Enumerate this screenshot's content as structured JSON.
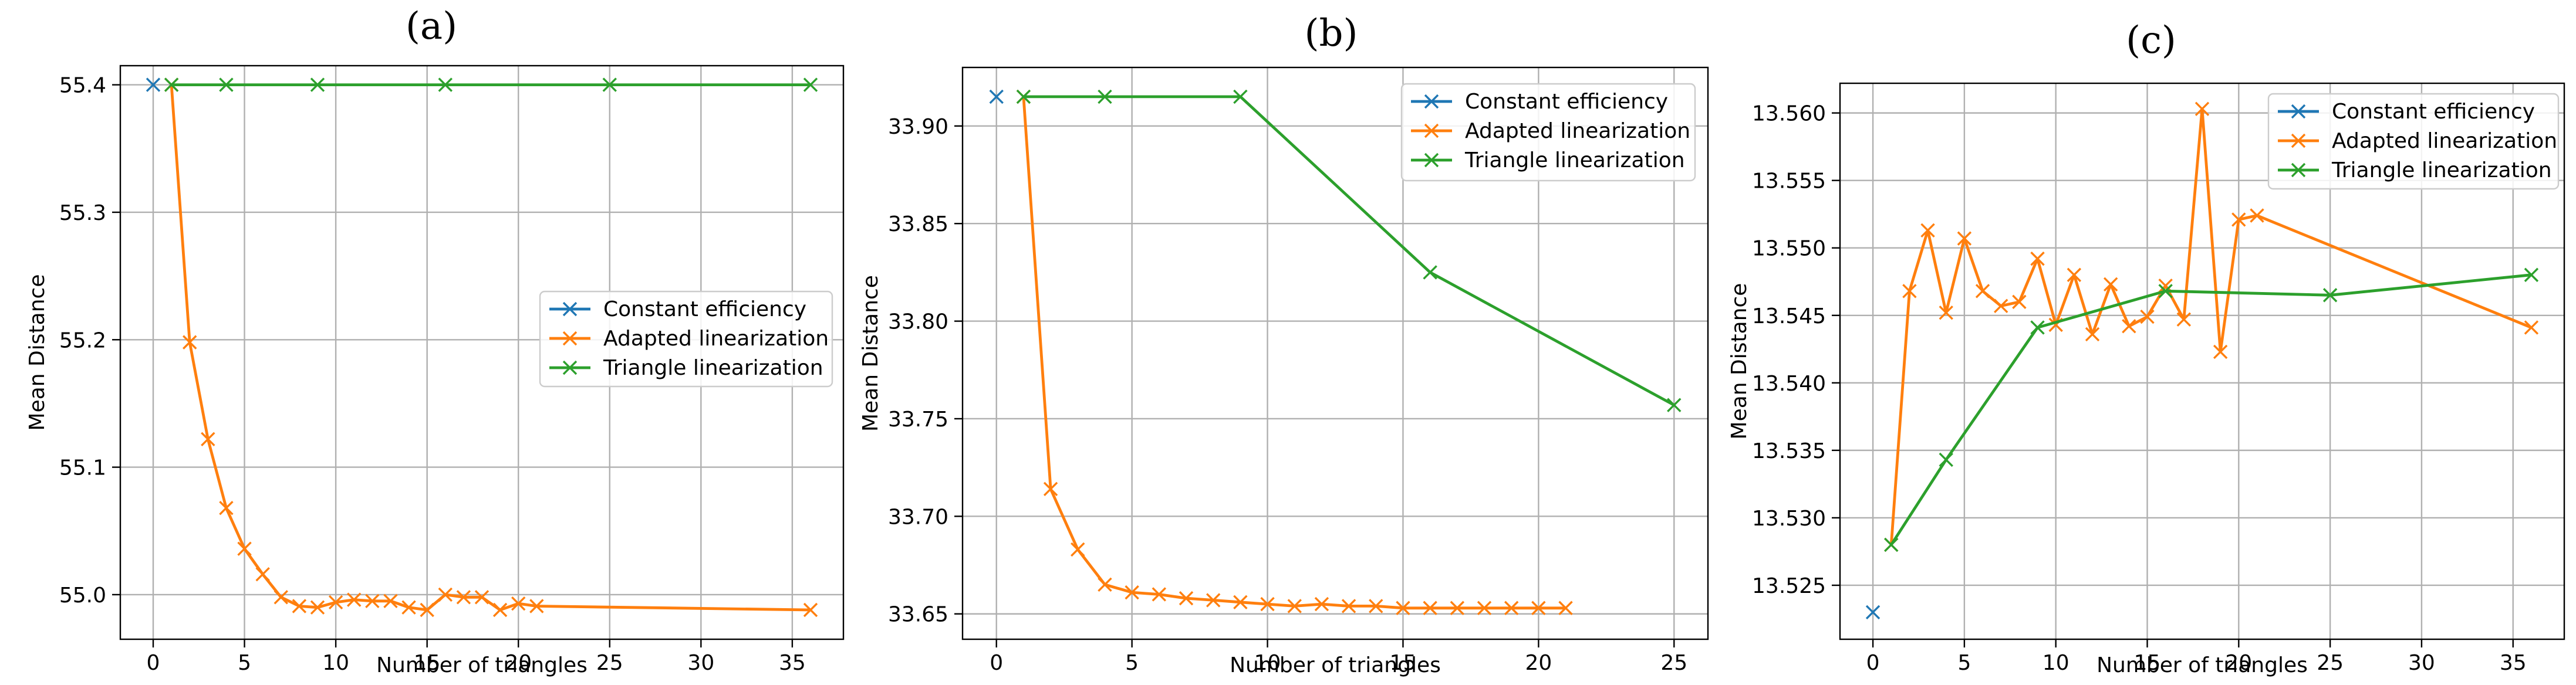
{
  "colors": {
    "constant": "#1f77b4",
    "adapted": "#ff7f0e",
    "triangle": "#2ca02c"
  },
  "chart_data": [
    {
      "type": "line",
      "title": "(a)",
      "xlabel": "Number of triangles",
      "ylabel": "Mean Distance",
      "xlim": [
        -1.8,
        37.8
      ],
      "ylim": [
        54.965,
        55.415
      ],
      "xticks": [
        0,
        5,
        10,
        15,
        20,
        25,
        30,
        35
      ],
      "yticks": [
        55.0,
        55.1,
        55.2,
        55.3,
        55.4
      ],
      "ytick_labels": [
        "55.0",
        "55.1",
        "55.2",
        "55.3",
        "55.4"
      ],
      "legend_position": "center-right",
      "series": [
        {
          "name": "Constant efficiency",
          "color_key": "constant",
          "x": [
            0
          ],
          "y": [
            55.4
          ]
        },
        {
          "name": "Adapted linearization",
          "color_key": "adapted",
          "x": [
            1,
            2,
            3,
            4,
            5,
            6,
            7,
            8,
            9,
            10,
            11,
            12,
            13,
            14,
            15,
            16,
            17,
            18,
            19,
            20,
            21,
            36
          ],
          "y": [
            55.4,
            55.198,
            55.122,
            55.068,
            55.036,
            55.016,
            54.998,
            54.991,
            54.99,
            54.994,
            54.996,
            54.995,
            54.995,
            54.99,
            54.988,
            55.0,
            54.998,
            54.998,
            54.988,
            54.993,
            54.991,
            54.988
          ]
        },
        {
          "name": "Triangle linearization",
          "color_key": "triangle",
          "x": [
            1,
            4,
            9,
            16,
            25,
            36
          ],
          "y": [
            55.4,
            55.4,
            55.4,
            55.4,
            55.4,
            55.4
          ]
        }
      ]
    },
    {
      "type": "line",
      "title": "(b)",
      "xlabel": "Number of triangles",
      "ylabel": "Mean Distance",
      "xlim": [
        -1.25,
        26.25
      ],
      "ylim": [
        33.637,
        33.93
      ],
      "xticks": [
        0,
        5,
        10,
        15,
        20,
        25
      ],
      "yticks": [
        33.65,
        33.7,
        33.75,
        33.8,
        33.85,
        33.9
      ],
      "ytick_labels": [
        "33.65",
        "33.70",
        "33.75",
        "33.80",
        "33.85",
        "33.90"
      ],
      "legend_position": "top-right",
      "series": [
        {
          "name": "Constant efficiency",
          "color_key": "constant",
          "x": [
            0
          ],
          "y": [
            33.915
          ]
        },
        {
          "name": "Adapted linearization",
          "color_key": "adapted",
          "x": [
            1,
            2,
            3,
            4,
            5,
            6,
            7,
            8,
            9,
            10,
            11,
            12,
            13,
            14,
            15,
            16,
            17,
            18,
            19,
            20,
            21
          ],
          "y": [
            33.915,
            33.714,
            33.683,
            33.665,
            33.661,
            33.66,
            33.658,
            33.657,
            33.656,
            33.655,
            33.654,
            33.655,
            33.654,
            33.654,
            33.653,
            33.653,
            33.653,
            33.653,
            33.653,
            33.653,
            33.653
          ]
        },
        {
          "name": "Triangle linearization",
          "color_key": "triangle",
          "x": [
            1,
            4,
            9,
            16,
            25
          ],
          "y": [
            33.915,
            33.915,
            33.915,
            33.825,
            33.757
          ]
        }
      ]
    },
    {
      "type": "line",
      "title": "(c)",
      "xlabel": "Number of triangles",
      "ylabel": "Mean Distance",
      "xlim": [
        -1.8,
        37.8
      ],
      "ylim": [
        13.521,
        13.5622
      ],
      "xticks": [
        0,
        5,
        10,
        15,
        20,
        25,
        30,
        35
      ],
      "yticks": [
        13.525,
        13.53,
        13.535,
        13.54,
        13.545,
        13.55,
        13.555,
        13.56
      ],
      "ytick_labels": [
        "13.525",
        "13.530",
        "13.535",
        "13.540",
        "13.545",
        "13.550",
        "13.555",
        "13.560"
      ],
      "legend_position": "top-right",
      "series": [
        {
          "name": "Constant efficiency",
          "color_key": "constant",
          "x": [
            0
          ],
          "y": [
            13.523
          ]
        },
        {
          "name": "Adapted linearization",
          "color_key": "adapted",
          "x": [
            1,
            2,
            3,
            4,
            5,
            6,
            7,
            8,
            9,
            10,
            11,
            12,
            13,
            14,
            15,
            16,
            17,
            18,
            19,
            20,
            21,
            36
          ],
          "y": [
            13.528,
            13.5468,
            13.5513,
            13.5452,
            13.5507,
            13.5468,
            13.5457,
            13.546,
            13.5492,
            13.5443,
            13.548,
            13.5436,
            13.5473,
            13.5442,
            13.5449,
            13.5472,
            13.5447,
            13.5603,
            13.5423,
            13.5521,
            13.5524,
            13.5441
          ]
        },
        {
          "name": "Triangle linearization",
          "color_key": "triangle",
          "x": [
            1,
            4,
            9,
            16,
            25,
            36
          ],
          "y": [
            13.528,
            13.5343,
            13.5441,
            13.5468,
            13.5465,
            13.548
          ]
        }
      ]
    }
  ]
}
